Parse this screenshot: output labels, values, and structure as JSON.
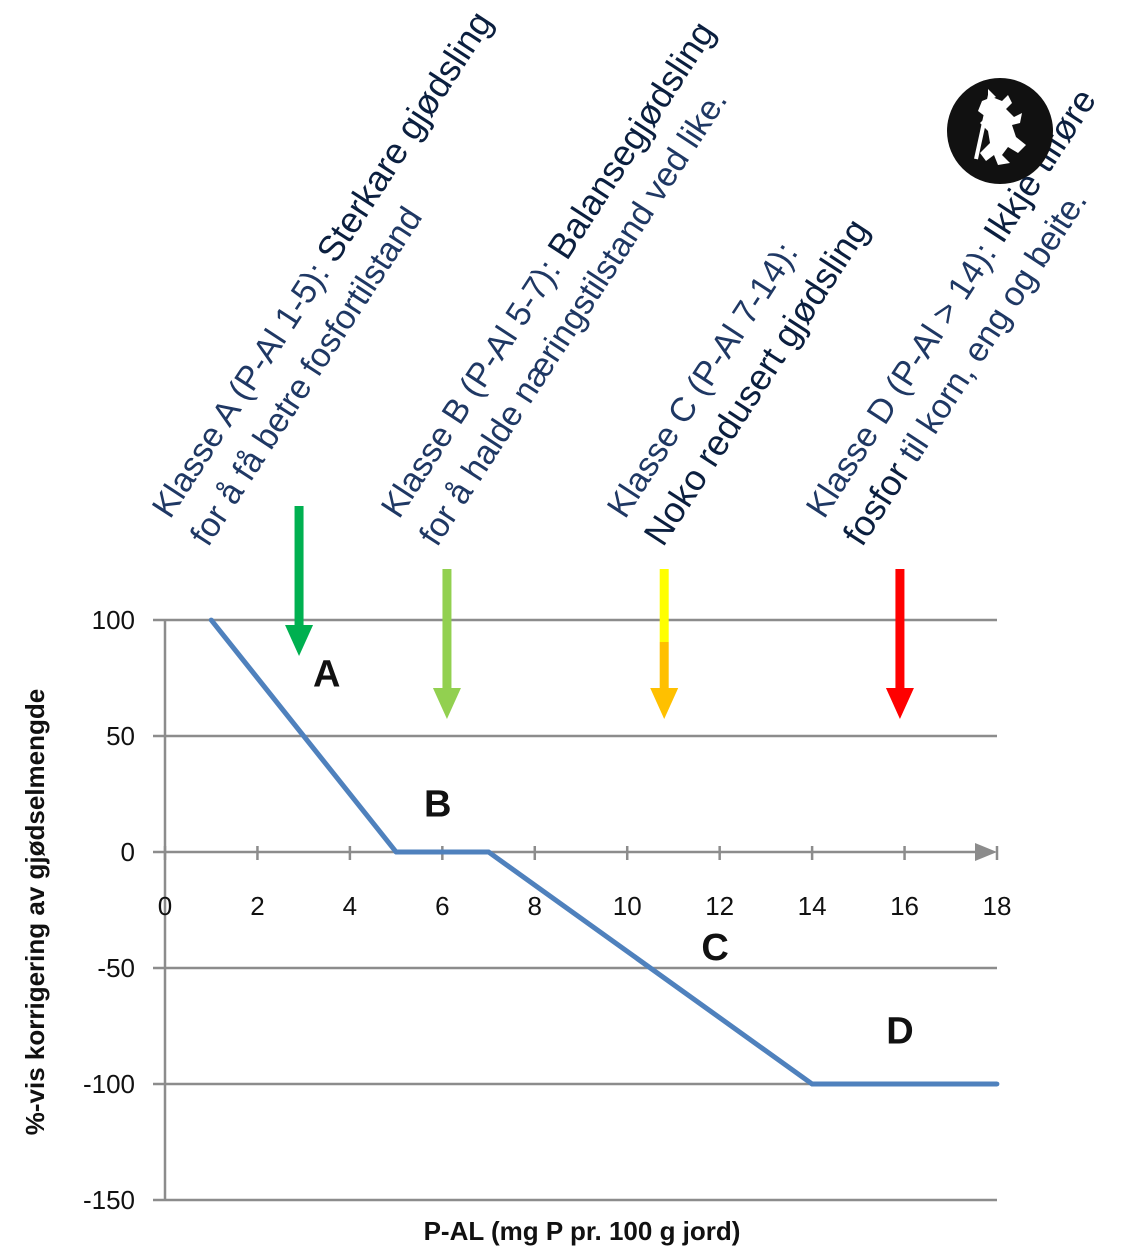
{
  "chart_data": {
    "type": "line",
    "xlabel": "P-AL (mg P pr. 100 g jord)",
    "ylabel": "%-vis korrigering av gjødselmengde",
    "xlim": [
      0,
      18
    ],
    "ylim": [
      -150,
      100
    ],
    "xticks": [
      0,
      2,
      4,
      6,
      8,
      10,
      12,
      14,
      16,
      18
    ],
    "yticks": [
      100,
      50,
      0,
      -50,
      -100,
      -150
    ],
    "grid": "horizontal",
    "series": [
      {
        "x": [
          1,
          5,
          7,
          14,
          18
        ],
        "y": [
          100,
          0,
          0,
          -100,
          -100
        ],
        "color": "#4f81bd"
      }
    ],
    "region_labels": [
      {
        "text": "A",
        "x": 3.5,
        "y": 77
      },
      {
        "text": "B",
        "x": 5.9,
        "y": 21
      },
      {
        "text": "C",
        "x": 11.9,
        "y": -41
      },
      {
        "text": "D",
        "x": 15.9,
        "y": -77
      }
    ],
    "arrows": [
      {
        "x": 2.9,
        "class": "A",
        "color": "#00b050"
      },
      {
        "x": 6.1,
        "class": "B",
        "color": "#92d050"
      },
      {
        "x": 10.8,
        "class": "C",
        "color": "#ffc000",
        "top_color": "#ffff00"
      },
      {
        "x": 15.9,
        "class": "D",
        "color": "#ff0000"
      }
    ],
    "annotations": [
      {
        "class": "A",
        "line1_plain": "Klasse A (P-Al 1-5): ",
        "line1_bold": "Sterkare gjødsling",
        "line2_plain": "for å få betre fosfortilstand",
        "line2_bold": ""
      },
      {
        "class": "B",
        "line1_plain": "Klasse B (P-Al 5-7): ",
        "line1_bold": "Balansegjødsling",
        "line2_plain": "for å halde næringstilstand ved like.",
        "line2_bold": ""
      },
      {
        "class": "C",
        "line1_plain": "Klasse C (P-Al 7-14):",
        "line1_bold": "",
        "line2_plain": "",
        "line2_bold": "Noko redusert gjødsling"
      },
      {
        "class": "D",
        "line1_plain": "Klasse D (P-Al > 14): ",
        "line1_bold": "Ikkje tilføre",
        "line2_plain": " til korn, eng og beite.",
        "line2_bold": "fosfor"
      }
    ]
  }
}
